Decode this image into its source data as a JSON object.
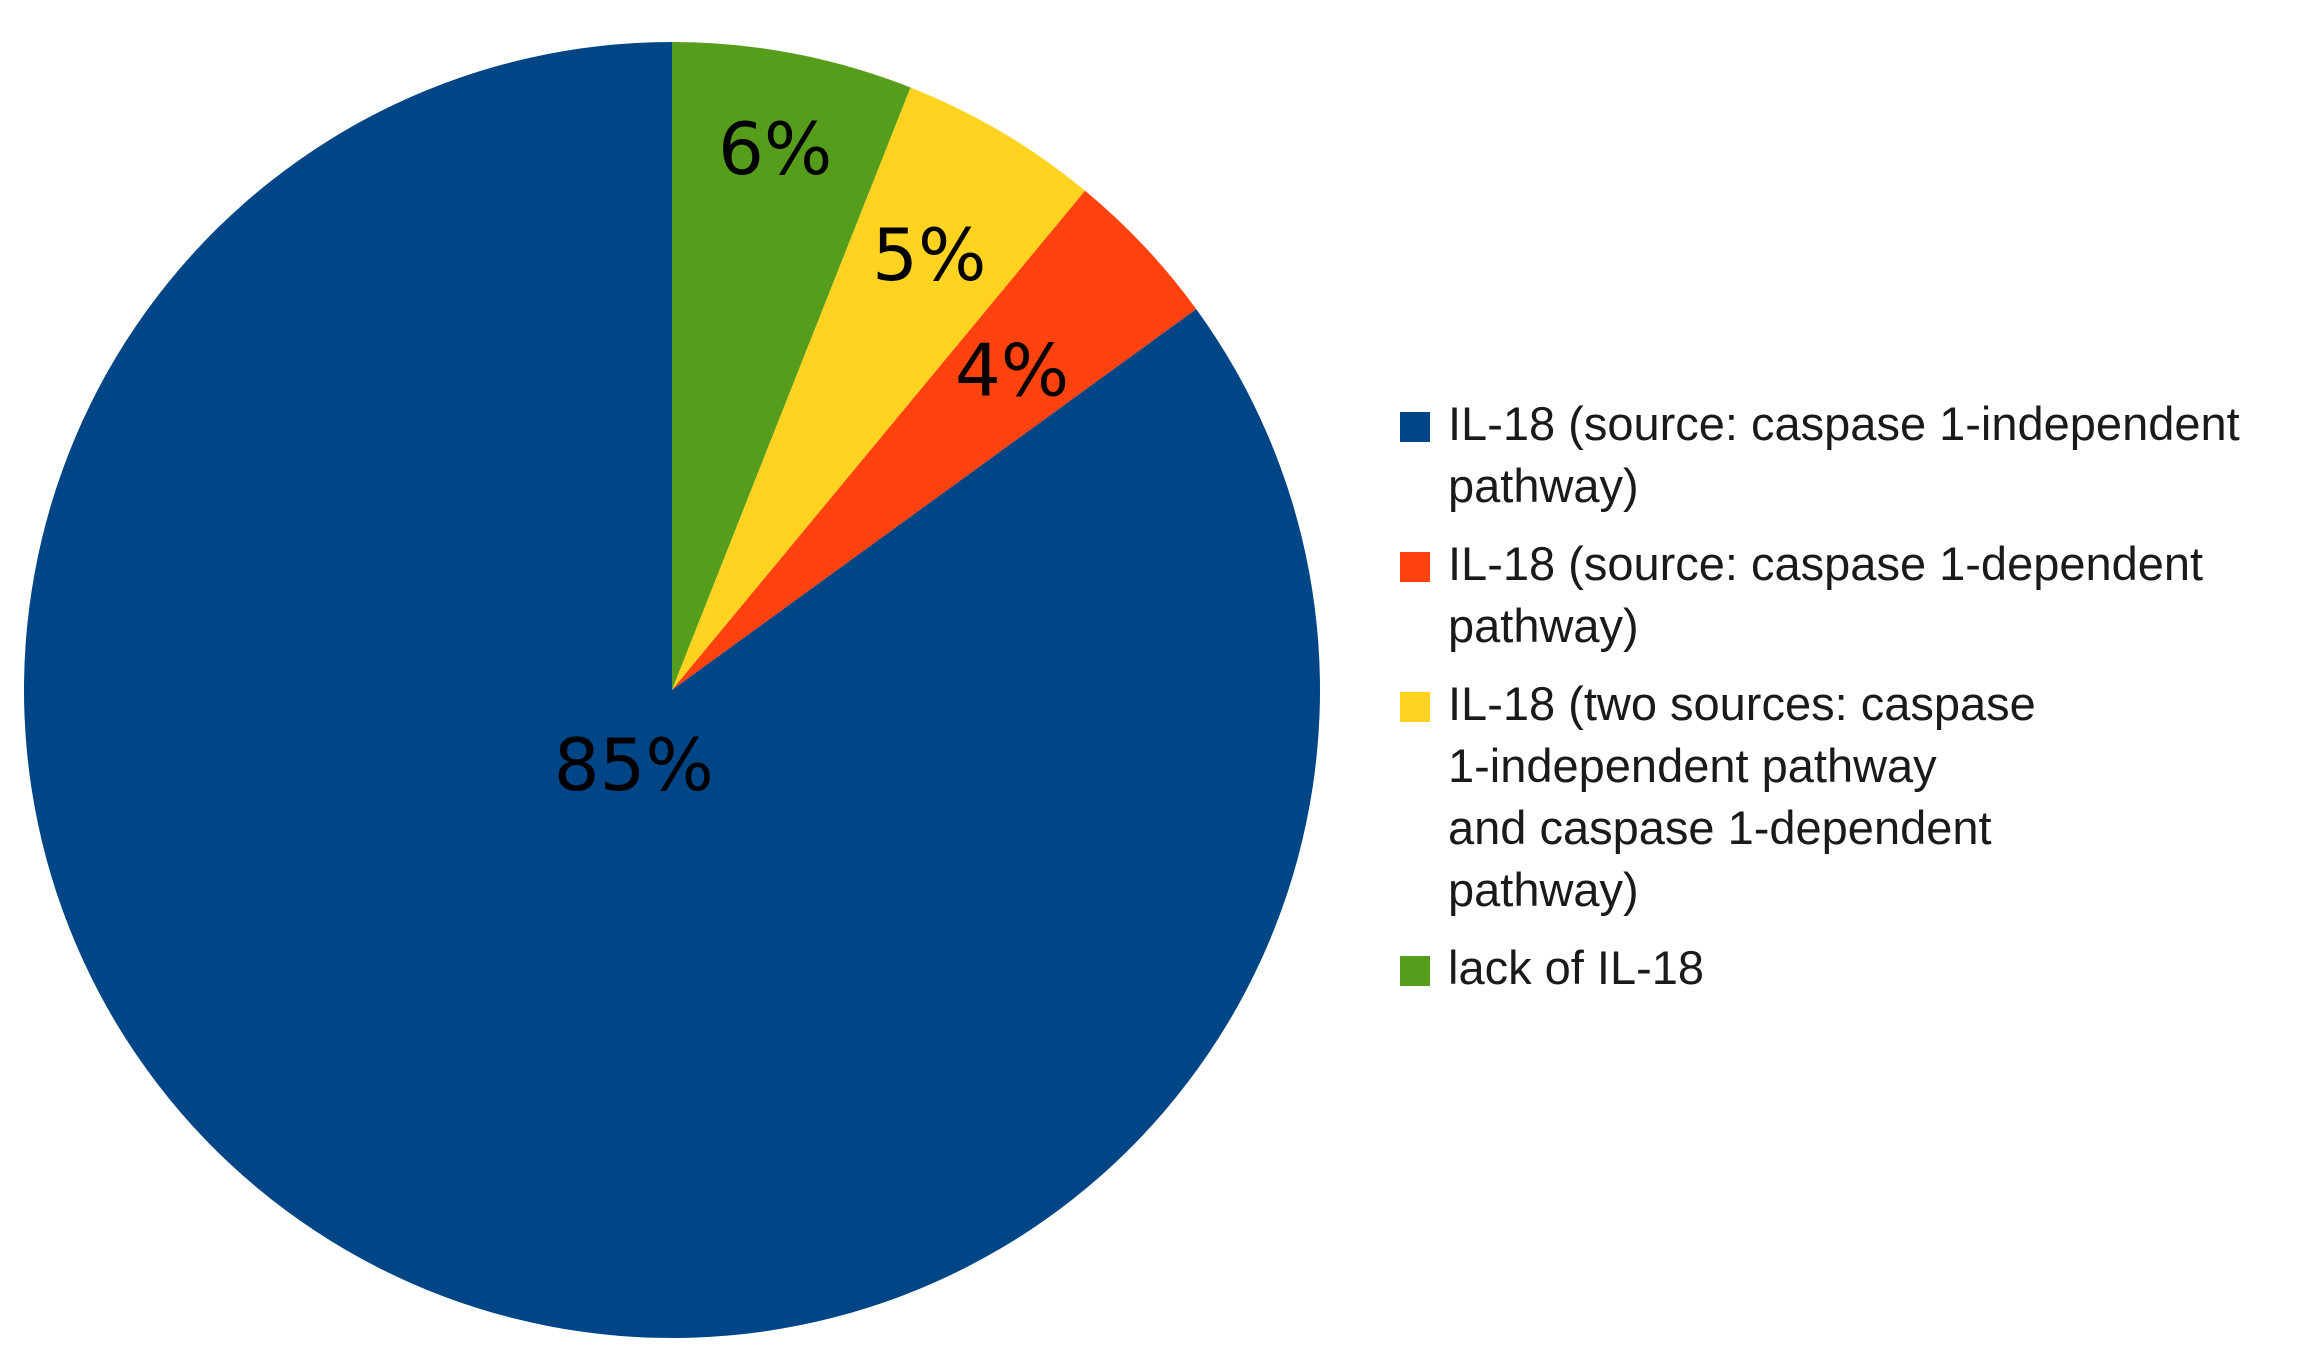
{
  "chart_data": {
    "type": "pie",
    "start_angle": "12 o'clock, clockwise",
    "slices": [
      {
        "label": "lack of IL-18",
        "value": 6,
        "value_label": "6%",
        "color": "#579d1c"
      },
      {
        "label": "IL-18 (two sources: caspase\n 1-independent pathway\nand caspase 1-dependent\npathway)",
        "value": 5,
        "value_label": "5%",
        "color": "#ffd320"
      },
      {
        "label": "IL-18 (source: caspase 1-dependent\npathway)",
        "value": 4,
        "value_label": "4%",
        "color": "#ff420e"
      },
      {
        "label": "IL-18 (source: caspase 1-independent\npathway)",
        "value": 85,
        "value_label": "85%",
        "color": "#004586"
      }
    ],
    "legend_order": [
      3,
      2,
      1,
      0
    ],
    "legend_placement": "right"
  }
}
